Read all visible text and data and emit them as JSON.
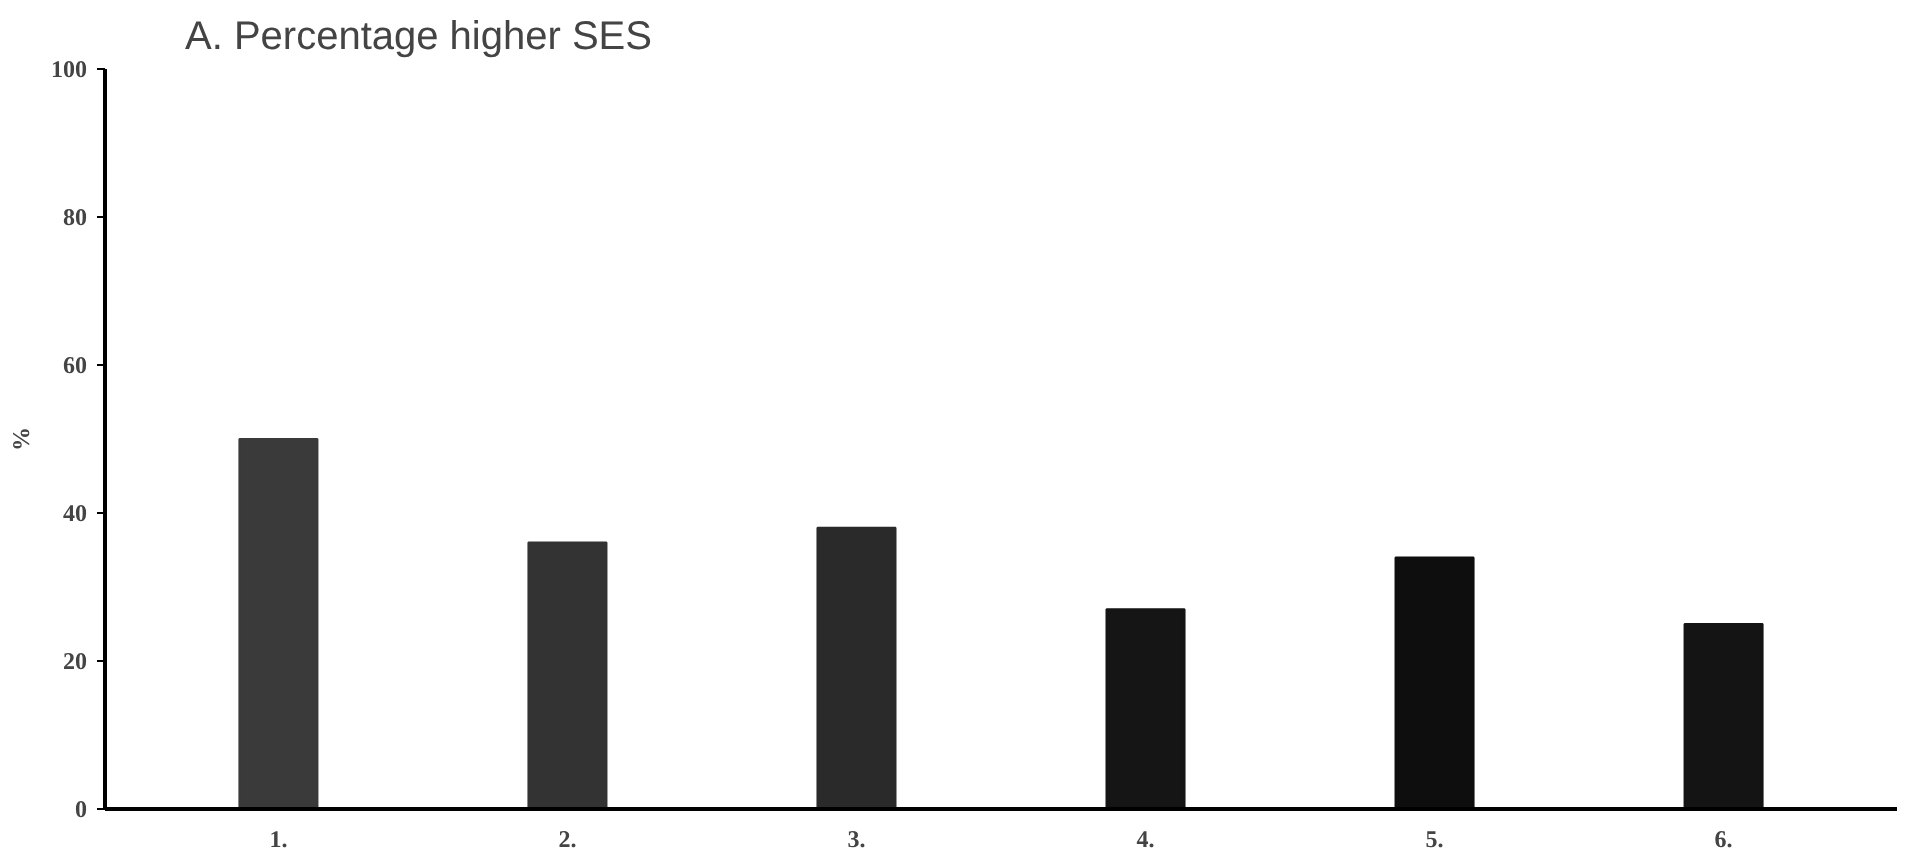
{
  "chart_data": {
    "type": "bar",
    "title": "A. Percentage higher SES",
    "ylabel": "%",
    "categories": [
      "1.",
      "2.",
      "3.",
      "4.",
      "5.",
      "6."
    ],
    "values": [
      50,
      36,
      38,
      27,
      34,
      25
    ],
    "colors": [
      "#3a3a3a",
      "#333333",
      "#2a2a2a",
      "#151515",
      "#0e0e0e",
      "#141414"
    ],
    "ylim": [
      0,
      100
    ],
    "yticks": [
      0,
      20,
      40,
      60,
      80,
      100
    ],
    "grid": false
  }
}
